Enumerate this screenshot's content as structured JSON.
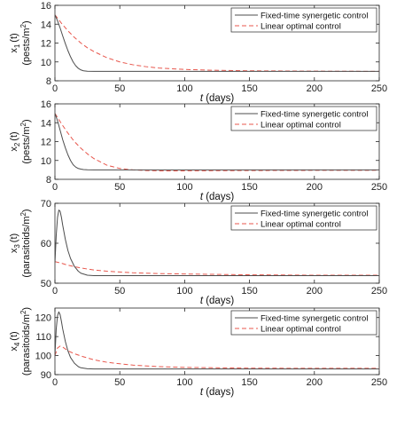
{
  "chart_data": [
    {
      "type": "line",
      "title": "",
      "xlabel_italic": "t",
      "xlabel_rest": " (days)",
      "ylabel_var": "x",
      "ylabel_sub": "1",
      "ylabel_rest": "(t)",
      "ylabel_unit": "(pests/m",
      "ylabel_sup": "2",
      "xlim": [
        0,
        250
      ],
      "ylim": [
        8,
        16
      ],
      "xticks": [
        0,
        50,
        100,
        150,
        200,
        250
      ],
      "yticks": [
        8,
        10,
        12,
        14,
        16
      ],
      "grid": false,
      "legend_position": "top-right",
      "series": [
        {
          "name": "Fixed-time synergetic control",
          "style": "solid",
          "color": "#4d4d4d",
          "x": [
            0,
            2,
            4,
            6,
            8,
            10,
            12,
            14,
            16,
            18,
            20,
            22,
            25,
            30,
            40,
            60,
            100,
            150,
            200,
            250
          ],
          "y": [
            15.0,
            14.35,
            13.6,
            12.75,
            11.95,
            11.2,
            10.55,
            10.0,
            9.6,
            9.32,
            9.15,
            9.06,
            9.01,
            9.0,
            9.0,
            9.0,
            9.0,
            9.0,
            9.0,
            9.0
          ]
        },
        {
          "name": "Linear optimal control",
          "style": "dashed",
          "color": "#e8574d",
          "x": [
            0,
            5,
            10,
            15,
            20,
            25,
            30,
            40,
            50,
            60,
            70,
            80,
            100,
            120,
            150,
            200,
            250
          ],
          "y": [
            15.0,
            14.1,
            13.3,
            12.6,
            12.0,
            11.5,
            11.1,
            10.45,
            10.0,
            9.7,
            9.5,
            9.35,
            9.2,
            9.12,
            9.06,
            9.02,
            9.0
          ]
        }
      ]
    },
    {
      "type": "line",
      "title": "",
      "xlabel_italic": "t",
      "xlabel_rest": " (days)",
      "ylabel_var": "x",
      "ylabel_sub": "2",
      "ylabel_rest": "(t)",
      "ylabel_unit": "(pests/m",
      "ylabel_sup": "2",
      "xlim": [
        0,
        250
      ],
      "ylim": [
        8,
        16
      ],
      "xticks": [
        0,
        50,
        100,
        150,
        200,
        250
      ],
      "yticks": [
        8,
        10,
        12,
        14,
        16
      ],
      "grid": false,
      "legend_position": "top-right",
      "series": [
        {
          "name": "Fixed-time synergetic control",
          "style": "solid",
          "color": "#4d4d4d",
          "x": [
            0,
            2,
            4,
            6,
            8,
            10,
            12,
            14,
            16,
            18,
            20,
            22,
            25,
            30,
            40,
            60,
            100,
            150,
            200,
            250
          ],
          "y": [
            15.0,
            14.2,
            13.2,
            12.2,
            11.35,
            10.6,
            10.0,
            9.55,
            9.3,
            9.15,
            9.08,
            9.04,
            9.01,
            9.0,
            9.0,
            9.0,
            9.0,
            9.0,
            9.0,
            9.0
          ]
        },
        {
          "name": "Linear optimal control",
          "style": "dashed",
          "color": "#e8574d",
          "x": [
            0,
            5,
            10,
            15,
            20,
            25,
            30,
            40,
            50,
            60,
            70,
            80,
            100,
            150,
            200,
            250
          ],
          "y": [
            15.0,
            13.9,
            12.9,
            12.0,
            11.3,
            10.7,
            10.2,
            9.5,
            9.15,
            9.0,
            8.93,
            8.9,
            8.9,
            8.93,
            8.95,
            8.96
          ]
        }
      ]
    },
    {
      "type": "line",
      "title": "",
      "xlabel_italic": "t",
      "xlabel_rest": " (days)",
      "ylabel_var": "x",
      "ylabel_sub": "3",
      "ylabel_rest": "(t)",
      "ylabel_unit": "(parasitoids/m",
      "ylabel_sup": "2",
      "xlim": [
        0,
        250
      ],
      "ylim": [
        50,
        70
      ],
      "xticks": [
        0,
        50,
        100,
        150,
        200,
        250
      ],
      "yticks": [
        50,
        60,
        70
      ],
      "grid": false,
      "legend_position": "top-right",
      "series": [
        {
          "name": "Fixed-time synergetic control",
          "style": "solid",
          "color": "#4d4d4d",
          "x": [
            0,
            1,
            2,
            3,
            4,
            5,
            6,
            8,
            10,
            12,
            15,
            18,
            20,
            25,
            30,
            40,
            60,
            100,
            150,
            200,
            250
          ],
          "y": [
            55.0,
            62.0,
            66.5,
            68.3,
            68.0,
            66.5,
            64.5,
            61.0,
            58.2,
            56.2,
            54.2,
            53.0,
            52.5,
            52.0,
            51.9,
            51.9,
            51.9,
            51.9,
            51.9,
            51.9,
            51.9
          ]
        },
        {
          "name": "Linear optimal control",
          "style": "dashed",
          "color": "#e8574d",
          "x": [
            0,
            5,
            10,
            20,
            30,
            40,
            50,
            60,
            80,
            100,
            150,
            200,
            250
          ],
          "y": [
            55.4,
            55.0,
            54.5,
            53.8,
            53.3,
            53.0,
            52.8,
            52.6,
            52.4,
            52.3,
            52.1,
            52.0,
            52.0
          ]
        }
      ]
    },
    {
      "type": "line",
      "title": "",
      "xlabel_italic": "t",
      "xlabel_rest": " (days)",
      "ylabel_var": "x",
      "ylabel_sub": "4",
      "ylabel_rest": "(t)",
      "ylabel_unit": "(parasitoids/m",
      "ylabel_sup": "2",
      "xlim": [
        0,
        250
      ],
      "ylim": [
        90,
        125
      ],
      "xticks": [
        0,
        50,
        100,
        150,
        200,
        250
      ],
      "yticks": [
        90,
        100,
        110,
        120
      ],
      "grid": false,
      "legend_position": "top-right",
      "series": [
        {
          "name": "Fixed-time synergetic control",
          "style": "solid",
          "color": "#4d4d4d",
          "x": [
            0,
            1,
            2,
            3,
            4,
            5,
            6,
            8,
            10,
            12,
            15,
            18,
            20,
            25,
            30,
            40,
            60,
            100,
            150,
            200,
            250
          ],
          "y": [
            100.0,
            114.0,
            121.0,
            123.0,
            121.5,
            118.0,
            114.0,
            107.5,
            102.5,
            99.0,
            96.0,
            94.2,
            93.6,
            93.1,
            93.0,
            93.0,
            93.0,
            93.0,
            93.0,
            93.0,
            93.0
          ]
        },
        {
          "name": "Linear optimal control",
          "style": "dashed",
          "color": "#e8574d",
          "x": [
            0,
            2,
            4,
            6,
            10,
            15,
            20,
            30,
            40,
            50,
            60,
            80,
            100,
            150,
            200,
            250
          ],
          "y": [
            100.0,
            104.0,
            105.0,
            104.5,
            102.5,
            101.0,
            99.8,
            97.8,
            96.5,
            95.7,
            95.0,
            94.2,
            93.8,
            93.4,
            93.3,
            93.3
          ]
        }
      ]
    }
  ]
}
